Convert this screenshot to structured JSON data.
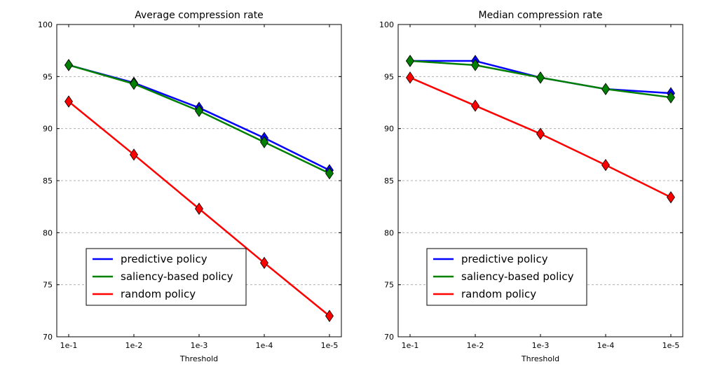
{
  "chart_data": [
    {
      "type": "line",
      "title": "Average compression rate",
      "xlabel": "Threshold",
      "ylabel": "",
      "categories": [
        "1e-1",
        "1e-2",
        "1e-3",
        "1e-4",
        "1e-5"
      ],
      "ylim": [
        70,
        100
      ],
      "yticks": [
        70,
        75,
        80,
        85,
        90,
        95,
        100
      ],
      "grid": "horizontal dashed",
      "legend_position": "lower-left",
      "series": [
        {
          "name": "predictive policy",
          "color": "#0000ff",
          "values": [
            96.1,
            94.4,
            92.0,
            89.1,
            86.0
          ]
        },
        {
          "name": "saliency-based policy",
          "color": "#008000",
          "values": [
            96.1,
            94.3,
            91.7,
            88.7,
            85.7
          ]
        },
        {
          "name": "random policy",
          "color": "#ff0000",
          "values": [
            92.6,
            87.5,
            82.3,
            77.1,
            72.0
          ]
        }
      ]
    },
    {
      "type": "line",
      "title": "Median compression rate",
      "xlabel": "Threshold",
      "ylabel": "",
      "categories": [
        "1e-1",
        "1e-2",
        "1e-3",
        "1e-4",
        "1e-5"
      ],
      "ylim": [
        70,
        100
      ],
      "yticks": [
        70,
        75,
        80,
        85,
        90,
        95,
        100
      ],
      "grid": "horizontal dashed",
      "legend_position": "lower-left",
      "series": [
        {
          "name": "predictive policy",
          "color": "#0000ff",
          "values": [
            96.5,
            96.5,
            94.9,
            93.8,
            93.4
          ]
        },
        {
          "name": "saliency-based policy",
          "color": "#008000",
          "values": [
            96.5,
            96.1,
            94.9,
            93.8,
            93.0
          ]
        },
        {
          "name": "random policy",
          "color": "#ff0000",
          "values": [
            94.9,
            92.2,
            89.5,
            86.5,
            83.4
          ]
        }
      ]
    }
  ]
}
